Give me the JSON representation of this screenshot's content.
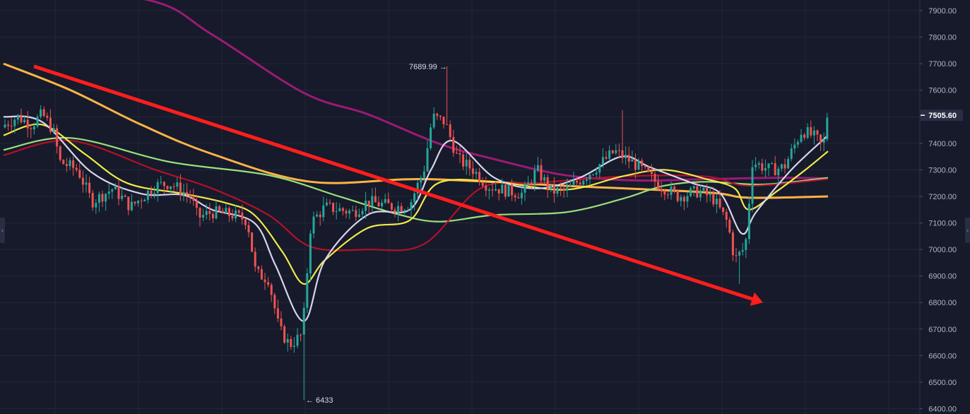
{
  "chart_data": {
    "type": "candlestick",
    "y_axis": {
      "ticks": [
        "7900.00",
        "7800.00",
        "7700.00",
        "7600.00",
        "7500.00",
        "7400.00",
        "7300.00",
        "7200.00",
        "7100.00",
        "7000.00",
        "6900.00",
        "6800.00",
        "6700.00",
        "6600.00",
        "6500.00",
        "6400.00"
      ],
      "range": [
        6380,
        7940
      ],
      "position": "right"
    },
    "current_price": "7505.60",
    "annotations": {
      "high_label": "7689.99 →",
      "low_label": "← 6433"
    },
    "grid": true,
    "colors": {
      "background": "#161a2b",
      "grid": "#232838",
      "up": "#26a69a",
      "down": "#ef5350",
      "trend_arrow": "#ff1e1e",
      "price_tag": "#2a2e45"
    },
    "key_points": [
      {
        "label": "start",
        "close": 7460
      },
      {
        "label": "low",
        "low": 6433,
        "close": 6680
      },
      {
        "label": "high",
        "high": 7689.99,
        "close": 7480
      },
      {
        "label": "second_low",
        "low": 6870,
        "close": 6960
      },
      {
        "label": "end",
        "close": 7505.6
      }
    ],
    "moving_averages": [
      {
        "color": "#9c1a73",
        "points": [
          [
            0,
            8000
          ],
          [
            210,
            7940
          ],
          [
            300,
            7810
          ],
          [
            430,
            7590
          ],
          [
            520,
            7510
          ],
          [
            620,
            7400
          ],
          [
            700,
            7340
          ],
          [
            800,
            7280
          ],
          [
            900,
            7260
          ],
          [
            1000,
            7265
          ],
          [
            1100,
            7270
          ],
          [
            1172,
            7268
          ]
        ]
      },
      {
        "color": "#ffb347",
        "points": [
          [
            5,
            7700
          ],
          [
            100,
            7600
          ],
          [
            200,
            7470
          ],
          [
            300,
            7360
          ],
          [
            440,
            7255
          ],
          [
            600,
            7265
          ],
          [
            800,
            7240
          ],
          [
            1000,
            7215
          ],
          [
            1060,
            7195
          ],
          [
            1172,
            7200
          ]
        ]
      },
      {
        "color": "#9be07a",
        "points": [
          [
            5,
            7375
          ],
          [
            100,
            7420
          ],
          [
            240,
            7330
          ],
          [
            380,
            7280
          ],
          [
            480,
            7200
          ],
          [
            560,
            7135
          ],
          [
            620,
            7105
          ],
          [
            700,
            7130
          ],
          [
            800,
            7140
          ],
          [
            880,
            7190
          ],
          [
            940,
            7240
          ],
          [
            1000,
            7255
          ],
          [
            1080,
            7245
          ],
          [
            1172,
            7270
          ]
        ]
      },
      {
        "color": "#b3102a",
        "points": [
          [
            5,
            7355
          ],
          [
            100,
            7410
          ],
          [
            220,
            7300
          ],
          [
            300,
            7230
          ],
          [
            380,
            7130
          ],
          [
            440,
            7010
          ],
          [
            520,
            7000
          ],
          [
            600,
            7020
          ],
          [
            680,
            7230
          ],
          [
            760,
            7250
          ],
          [
            880,
            7275
          ],
          [
            1000,
            7275
          ],
          [
            1060,
            7240
          ],
          [
            1172,
            7265
          ]
        ]
      },
      {
        "color": "#f1e94a",
        "points": [
          [
            5,
            7430
          ],
          [
            60,
            7470
          ],
          [
            120,
            7360
          ],
          [
            180,
            7250
          ],
          [
            260,
            7210
          ],
          [
            320,
            7175
          ],
          [
            360,
            7130
          ],
          [
            400,
            6990
          ],
          [
            430,
            6870
          ],
          [
            460,
            6960
          ],
          [
            520,
            7080
          ],
          [
            580,
            7110
          ],
          [
            620,
            7250
          ],
          [
            700,
            7255
          ],
          [
            800,
            7225
          ],
          [
            880,
            7275
          ],
          [
            940,
            7300
          ],
          [
            1000,
            7265
          ],
          [
            1040,
            7230
          ],
          [
            1060,
            7150
          ],
          [
            1100,
            7220
          ],
          [
            1140,
            7300
          ],
          [
            1172,
            7370
          ]
        ]
      },
      {
        "color": "#d8d4ee",
        "points": [
          [
            5,
            7500
          ],
          [
            60,
            7480
          ],
          [
            130,
            7290
          ],
          [
            200,
            7210
          ],
          [
            260,
            7205
          ],
          [
            300,
            7150
          ],
          [
            360,
            7100
          ],
          [
            390,
            6940
          ],
          [
            430,
            6730
          ],
          [
            460,
            6960
          ],
          [
            520,
            7130
          ],
          [
            580,
            7150
          ],
          [
            610,
            7300
          ],
          [
            640,
            7410
          ],
          [
            700,
            7270
          ],
          [
            760,
            7230
          ],
          [
            820,
            7270
          ],
          [
            880,
            7350
          ],
          [
            920,
            7310
          ],
          [
            980,
            7250
          ],
          [
            1020,
            7210
          ],
          [
            1050,
            7060
          ],
          [
            1070,
            7140
          ],
          [
            1120,
            7300
          ],
          [
            1172,
            7430
          ]
        ]
      }
    ],
    "trend_line": {
      "from": [
        48,
        7690
      ],
      "to": [
        1080,
        6800
      ]
    }
  }
}
